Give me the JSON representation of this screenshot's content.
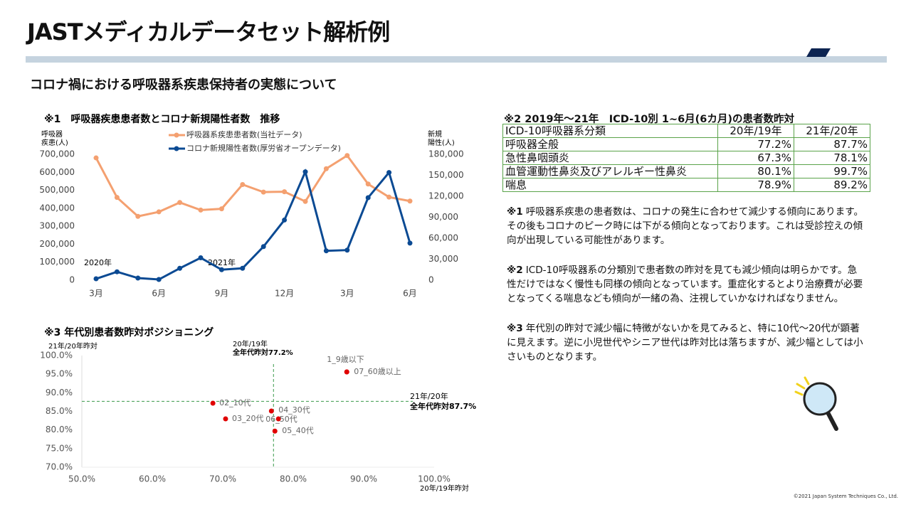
{
  "header": {
    "title": "JASTメディカルデータセット解析例",
    "subtitle": "コロナ禍における呼吸器系疾患保持者の実態について"
  },
  "chart_data": [
    {
      "type": "line",
      "title": "※1　呼吸器疾患患者数とコロナ新規陽性者数　推移",
      "ylabel": [
        "呼吸器",
        "疾患(人)"
      ],
      "y2label": [
        "新規",
        "陽性(人)"
      ],
      "categories": [
        "3月",
        null,
        null,
        "6月",
        null,
        null,
        "9月",
        null,
        null,
        "12月",
        null,
        null,
        "3月",
        null,
        null,
        "6月"
      ],
      "annotations": [
        "2020年",
        "2021年"
      ],
      "ylim": [
        0,
        700000
      ],
      "yticks": [
        0,
        {
          "value": 100000,
          "label": "100,000"
        },
        {
          "value": 200000,
          "label": "200,000"
        },
        {
          "value": 300000,
          "label": "300,000"
        },
        {
          "value": 400000,
          "label": "400,000"
        },
        {
          "value": 500000,
          "label": "500,000"
        },
        {
          "value": 600000,
          "label": "600,000"
        },
        {
          "value": 700000,
          "label": "700,000"
        }
      ],
      "y2lim": [
        0,
        180000
      ],
      "y2ticks": [
        0,
        {
          "value": 30000,
          "label": "30,000"
        },
        {
          "value": 60000,
          "label": "60,000"
        },
        {
          "value": 90000,
          "label": "90,000"
        },
        {
          "value": 120000,
          "label": "120,000"
        },
        {
          "value": 150000,
          "label": "150,000"
        },
        {
          "value": 180000,
          "label": "180,000"
        }
      ],
      "series": [
        {
          "name": "呼吸器系疾患患者数(当社データ)",
          "color": "#f4a070",
          "values": [
            680000,
            460000,
            355000,
            380000,
            432000,
            390000,
            397000,
            532000,
            490000,
            492000,
            438000,
            620000,
            693000,
            535000,
            462000,
            440000
          ]
        },
        {
          "name": "コロナ新規陽性者数(厚労省オープンデータ)",
          "color": "#0b4a93",
          "axis": "y2",
          "values": [
            2000,
            12000,
            3000,
            1000,
            17000,
            32000,
            15000,
            17000,
            48000,
            86000,
            155000,
            42000,
            43000,
            118000,
            154000,
            53000
          ]
        }
      ]
    },
    {
      "type": "scatter",
      "title": "※3 年代別患者数昨対ポジショニング",
      "xlabel": "20年/19年昨対",
      "ylabel": "21年/20年昨対",
      "xlim": [
        50,
        100
      ],
      "xticks": [
        {
          "value": 50,
          "label": "50.0%"
        },
        {
          "value": 60,
          "label": "60.0%"
        },
        {
          "value": 70,
          "label": "70.0%"
        },
        {
          "value": 80,
          "label": "80.0%"
        },
        {
          "value": 90,
          "label": "90.0%"
        },
        {
          "value": 100,
          "label": "100.0%"
        }
      ],
      "ylim": [
        70,
        100
      ],
      "yticks": [
        {
          "value": 70,
          "label": "70.0%"
        },
        {
          "value": 75,
          "label": "75.0%"
        },
        {
          "value": 80,
          "label": "80.0%"
        },
        {
          "value": 85,
          "label": "85.0%"
        },
        {
          "value": 90,
          "label": "90.0%"
        },
        {
          "value": 95,
          "label": "95.0%"
        },
        {
          "value": 100,
          "label": "100.0%"
        }
      ],
      "x": [
        87.6,
        68.6,
        70.4,
        76.9,
        77.4,
        77.9,
        87.6
      ],
      "series": [
        {
          "color": "#e00000",
          "values": [
            95.6,
            87.2,
            83.0,
            85.1,
            79.7,
            83.0,
            95.6
          ],
          "point_labels": [
            "1_9歳以下",
            "02_10代",
            "03_20代",
            "04_30代",
            "05_40代",
            "06_50代",
            "07_60歳以上"
          ]
        }
      ],
      "ref_lines": [
        {
          "axis": "x",
          "value": 77.2,
          "label": [
            "20年/19年",
            "全年代昨対77.2%"
          ]
        },
        {
          "axis": "y",
          "value": 87.7,
          "label": [
            "21年/20年",
            "全年代昨対87.7%"
          ]
        }
      ],
      "ref_color": "#3a9a4a"
    }
  ],
  "table": {
    "title": "※2 2019年～21年　ICD-10別 1~6月(6カ月)の患者数昨対",
    "header": [
      "ICD-10呼吸器系分類",
      "20年/19年",
      "21年/20年"
    ],
    "rows": [
      [
        "呼吸器全般",
        "77.2%",
        "87.7%"
      ],
      [
        "急性鼻咽頭炎",
        "67.3%",
        "78.1%"
      ],
      [
        "血管運動性鼻炎及びアレルギー性鼻炎",
        "80.1%",
        "99.7%"
      ],
      [
        "喘息",
        "78.9%",
        "89.2%"
      ]
    ]
  },
  "notes": [
    {
      "mark": "※1",
      "text": "呼吸器系疾患の患者数は、コロナの発生に合わせて減少する傾向にあります。その後もコロナのピーク時には下がる傾向となっております。これは受診控えの傾向が出現している可能性があります。"
    },
    {
      "mark": "※2",
      "text": "ICD-10呼吸器系の分類別で患者数の昨対を見ても減少傾向は明らかです。急性だけではなく慢性も同様の傾向となっています。重症化するとより治療費が必要となってくる喘息なども傾向が一緒の為、注視していかなければなりません。"
    },
    {
      "mark": "※3",
      "text": "年代別の昨対で減少幅に特徴がないかを見てみると、特に10代～20代が顕著に見えます。逆に小児世代やシニア世代は昨対比は落ちますが、減少幅としては小さいものとなります。"
    }
  ],
  "footer": "©2021 Japan System Techniques Co., Ltd."
}
